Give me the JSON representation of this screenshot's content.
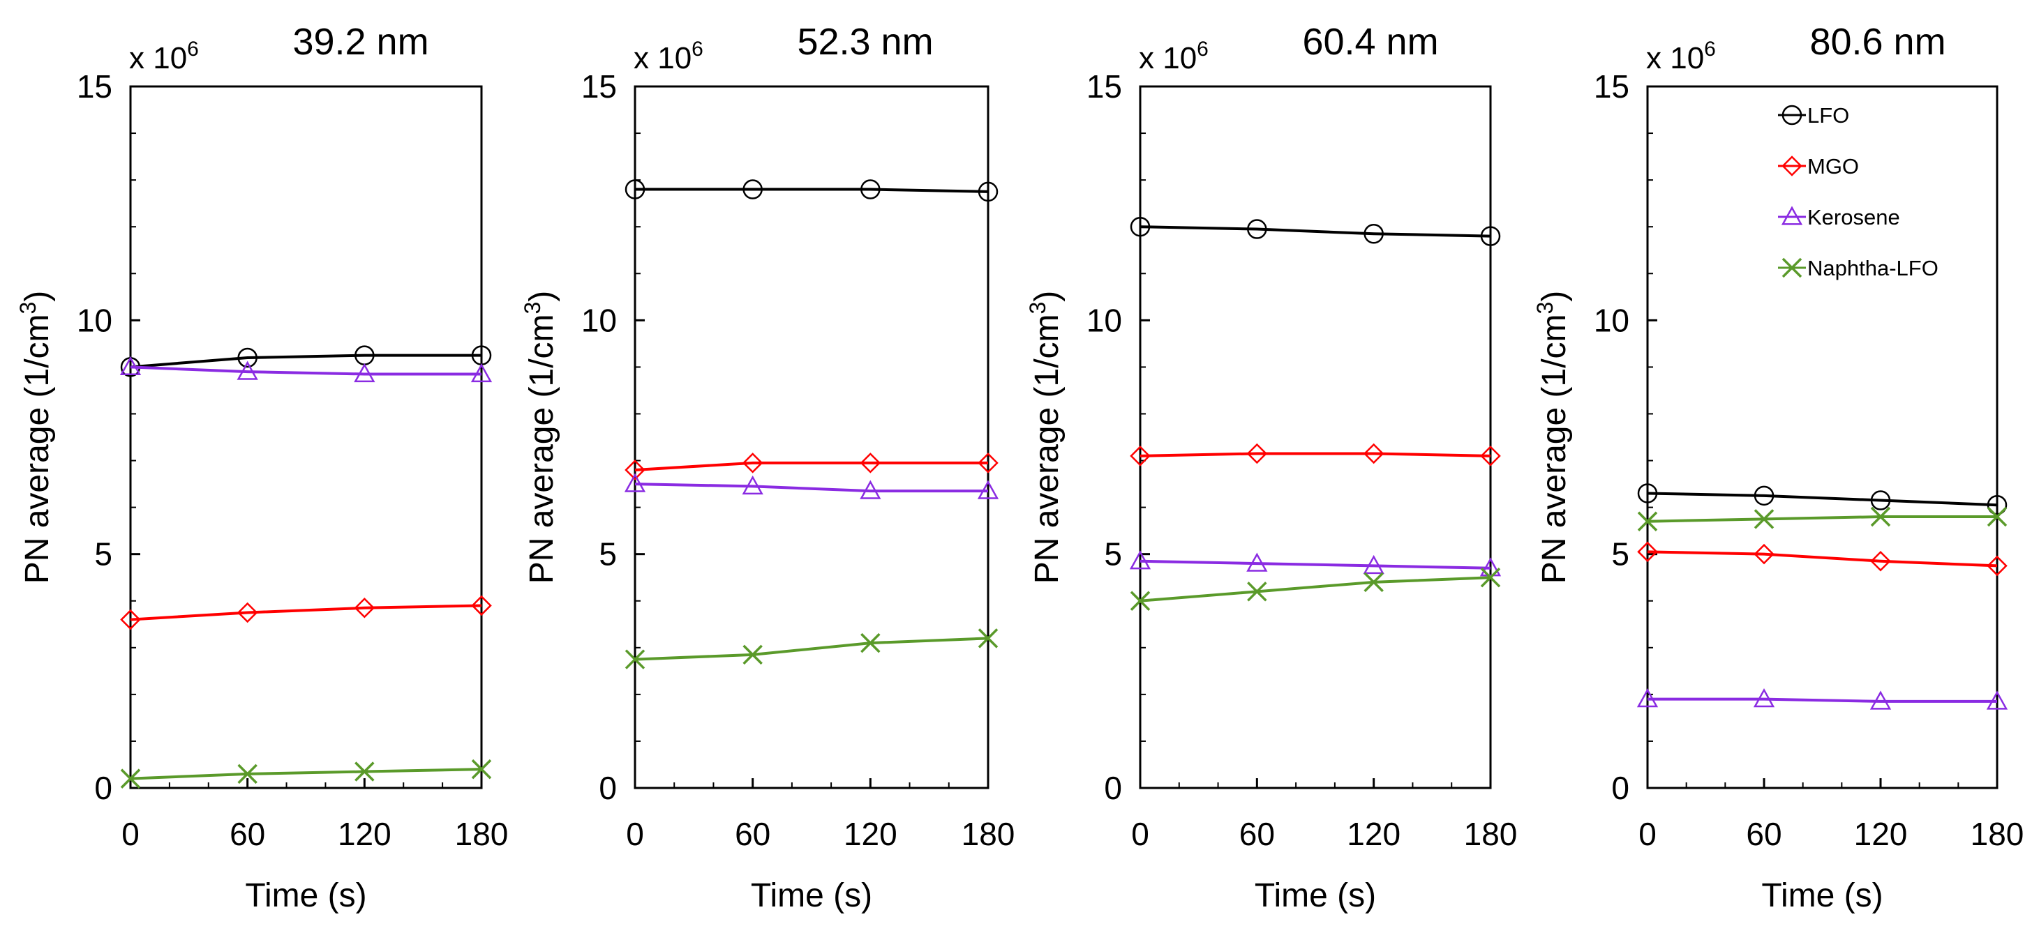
{
  "chart_data": [
    {
      "type": "line",
      "title": "39.2 nm",
      "xlabel": "Time (s)",
      "ylabel": "PN average (1/cm3)",
      "y_multiplier": {
        "base": "x 10",
        "exponent": "6"
      },
      "xlim": [
        0,
        180
      ],
      "ylim": [
        0,
        15
      ],
      "x": [
        0,
        60,
        120,
        180
      ],
      "xticks": [
        "0",
        "60",
        "120",
        "180"
      ],
      "yticks": [
        "0",
        "5",
        "10",
        "15"
      ],
      "series": [
        {
          "name": "LFO",
          "values": [
            9.0,
            9.2,
            9.25,
            9.25
          ]
        },
        {
          "name": "MGO",
          "values": [
            3.6,
            3.75,
            3.85,
            3.9
          ]
        },
        {
          "name": "Kerosene",
          "values": [
            9.0,
            8.9,
            8.85,
            8.85
          ]
        },
        {
          "name": "Naphtha-LFO",
          "values": [
            0.2,
            0.3,
            0.35,
            0.4
          ]
        }
      ]
    },
    {
      "type": "line",
      "title": "52.3 nm",
      "xlabel": "Time (s)",
      "ylabel": "PN average (1/cm3)",
      "y_multiplier": {
        "base": "x 10",
        "exponent": "6"
      },
      "xlim": [
        0,
        180
      ],
      "ylim": [
        0,
        15
      ],
      "x": [
        0,
        60,
        120,
        180
      ],
      "xticks": [
        "0",
        "60",
        "120",
        "180"
      ],
      "yticks": [
        "0",
        "5",
        "10",
        "15"
      ],
      "series": [
        {
          "name": "LFO",
          "values": [
            12.8,
            12.8,
            12.8,
            12.75
          ]
        },
        {
          "name": "MGO",
          "values": [
            6.8,
            6.95,
            6.95,
            6.95
          ]
        },
        {
          "name": "Kerosene",
          "values": [
            6.5,
            6.45,
            6.35,
            6.35
          ]
        },
        {
          "name": "Naphtha-LFO",
          "values": [
            2.75,
            2.85,
            3.1,
            3.2
          ]
        }
      ]
    },
    {
      "type": "line",
      "title": "60.4 nm",
      "xlabel": "Time (s)",
      "ylabel": "PN average (1/cm3)",
      "y_multiplier": {
        "base": "x 10",
        "exponent": "6"
      },
      "xlim": [
        0,
        180
      ],
      "ylim": [
        0,
        15
      ],
      "x": [
        0,
        60,
        120,
        180
      ],
      "xticks": [
        "0",
        "60",
        "120",
        "180"
      ],
      "yticks": [
        "0",
        "5",
        "10",
        "15"
      ],
      "series": [
        {
          "name": "LFO",
          "values": [
            12.0,
            11.95,
            11.85,
            11.8
          ]
        },
        {
          "name": "MGO",
          "values": [
            7.1,
            7.15,
            7.15,
            7.1
          ]
        },
        {
          "name": "Kerosene",
          "values": [
            4.85,
            4.8,
            4.75,
            4.7
          ]
        },
        {
          "name": "Naphtha-LFO",
          "values": [
            4.0,
            4.2,
            4.4,
            4.5
          ]
        }
      ]
    },
    {
      "type": "line",
      "title": "80.6 nm",
      "xlabel": "Time (s)",
      "ylabel": "PN average (1/cm3)",
      "y_multiplier": {
        "base": "x 10",
        "exponent": "6"
      },
      "xlim": [
        0,
        180
      ],
      "ylim": [
        0,
        15
      ],
      "x": [
        0,
        60,
        120,
        180
      ],
      "xticks": [
        "0",
        "60",
        "120",
        "180"
      ],
      "yticks": [
        "0",
        "5",
        "10",
        "15"
      ],
      "legend": {
        "position": "top-right",
        "entries": [
          "LFO",
          "MGO",
          "Kerosene",
          "Naphtha-LFO"
        ]
      },
      "series": [
        {
          "name": "LFO",
          "values": [
            6.3,
            6.25,
            6.15,
            6.05
          ]
        },
        {
          "name": "MGO",
          "values": [
            5.05,
            5.0,
            4.85,
            4.75
          ]
        },
        {
          "name": "Kerosene",
          "values": [
            1.9,
            1.9,
            1.85,
            1.85
          ]
        },
        {
          "name": "Naphtha-LFO",
          "values": [
            5.7,
            5.75,
            5.8,
            5.8
          ]
        }
      ]
    }
  ],
  "series_styles": {
    "LFO": {
      "color": "#000000",
      "marker": "circle"
    },
    "MGO": {
      "color": "#ff0000",
      "marker": "diamond"
    },
    "Kerosene": {
      "color": "#8a2be2",
      "marker": "triangle"
    },
    "Naphtha-LFO": {
      "color": "#5a9a2a",
      "marker": "x"
    }
  }
}
